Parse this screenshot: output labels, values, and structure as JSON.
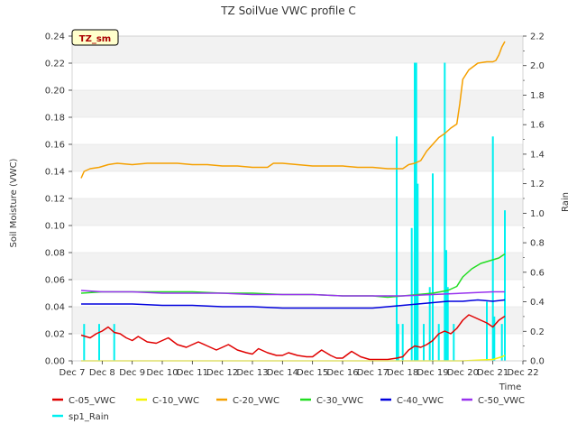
{
  "chart_data": {
    "type": "line",
    "title": "TZ SoilVue VWC profile C",
    "xlabel": "Time",
    "ylabel": "Soil Moisture (VWC)",
    "y2label": "Rain",
    "badge": "TZ_sm",
    "x_ticks": [
      "Dec 7",
      "Dec 8",
      "Dec 9",
      "Dec 10",
      "Dec 11",
      "Dec 12",
      "Dec 13",
      "Dec 14",
      "Dec 15",
      "Dec 16",
      "Dec 17",
      "Dec 18",
      "Dec 19",
      "Dec 20",
      "Dec 21",
      "Dec 22"
    ],
    "xlim": [
      7,
      22
    ],
    "ylim": [
      0.0,
      0.24
    ],
    "y_ticks": [
      "0.00",
      "0.02",
      "0.04",
      "0.06",
      "0.08",
      "0.10",
      "0.12",
      "0.14",
      "0.16",
      "0.18",
      "0.20",
      "0.22",
      "0.24"
    ],
    "y2lim": [
      0.0,
      2.2
    ],
    "y2_ticks": [
      "0.0",
      "0.2",
      "0.4",
      "0.6",
      "0.8",
      "1.0",
      "1.2",
      "1.4",
      "1.6",
      "1.8",
      "2.0",
      "2.2"
    ],
    "grid": "horizontal bands",
    "legend_position": "bottom",
    "series": [
      {
        "name": "C-05_VWC",
        "color": "#e00000",
        "axis": "left",
        "x": [
          7.3,
          7.6,
          7.8,
          8.0,
          8.2,
          8.4,
          8.6,
          8.8,
          9.0,
          9.2,
          9.5,
          9.8,
          10.0,
          10.2,
          10.5,
          10.8,
          11.0,
          11.2,
          11.5,
          11.8,
          12.0,
          12.2,
          12.5,
          12.8,
          13.0,
          13.2,
          13.5,
          13.8,
          14.0,
          14.2,
          14.5,
          14.8,
          15.0,
          15.3,
          15.6,
          15.8,
          16.0,
          16.3,
          16.6,
          16.9,
          17.2,
          17.5,
          17.8,
          18.0,
          18.2,
          18.4,
          18.6,
          18.8,
          19.0,
          19.2,
          19.4,
          19.6,
          19.8,
          20.0,
          20.2,
          20.4,
          20.6,
          20.8,
          21.0,
          21.2,
          21.4
        ],
        "values": [
          0.019,
          0.017,
          0.02,
          0.022,
          0.025,
          0.021,
          0.02,
          0.017,
          0.015,
          0.018,
          0.014,
          0.013,
          0.015,
          0.017,
          0.012,
          0.01,
          0.012,
          0.014,
          0.011,
          0.008,
          0.01,
          0.012,
          0.008,
          0.006,
          0.005,
          0.009,
          0.006,
          0.004,
          0.004,
          0.006,
          0.004,
          0.003,
          0.003,
          0.008,
          0.004,
          0.002,
          0.002,
          0.007,
          0.003,
          0.001,
          0.001,
          0.001,
          0.002,
          0.003,
          0.008,
          0.011,
          0.01,
          0.012,
          0.015,
          0.02,
          0.022,
          0.02,
          0.024,
          0.03,
          0.034,
          0.032,
          0.03,
          0.028,
          0.025,
          0.03,
          0.033
        ]
      },
      {
        "name": "C-10_VWC",
        "color": "#f5f500",
        "axis": "left",
        "x": [
          7.3,
          9.0,
          11.0,
          13.0,
          15.0,
          17.0,
          18.5,
          20.0,
          21.0,
          21.3,
          21.4
        ],
        "values": [
          0.0,
          0.0,
          0.0,
          0.0,
          0.0,
          0.0,
          0.0,
          0.0,
          0.001,
          0.003,
          0.004
        ]
      },
      {
        "name": "C-20_VWC",
        "color": "#f5a000",
        "axis": "left",
        "x": [
          7.3,
          7.4,
          7.6,
          7.9,
          8.2,
          8.5,
          9.0,
          9.5,
          10.0,
          10.5,
          11.0,
          11.5,
          12.0,
          12.5,
          13.0,
          13.5,
          13.7,
          14.0,
          14.5,
          15.0,
          15.5,
          16.0,
          16.5,
          17.0,
          17.5,
          18.0,
          18.2,
          18.4,
          18.6,
          18.8,
          19.0,
          19.2,
          19.4,
          19.6,
          19.8,
          19.9,
          20.0,
          20.2,
          20.5,
          20.8,
          21.0,
          21.1,
          21.2,
          21.3,
          21.4
        ],
        "values": [
          0.135,
          0.14,
          0.142,
          0.143,
          0.145,
          0.146,
          0.145,
          0.146,
          0.146,
          0.146,
          0.145,
          0.145,
          0.144,
          0.144,
          0.143,
          0.143,
          0.146,
          0.146,
          0.145,
          0.144,
          0.144,
          0.144,
          0.143,
          0.143,
          0.142,
          0.142,
          0.145,
          0.146,
          0.148,
          0.155,
          0.16,
          0.165,
          0.168,
          0.172,
          0.175,
          0.19,
          0.208,
          0.215,
          0.22,
          0.221,
          0.221,
          0.222,
          0.226,
          0.232,
          0.236
        ]
      },
      {
        "name": "C-30_VWC",
        "color": "#22dd22",
        "axis": "left",
        "x": [
          7.3,
          8.0,
          9.0,
          10.0,
          11.0,
          12.0,
          13.0,
          14.0,
          15.0,
          16.0,
          17.0,
          17.5,
          18.0,
          18.5,
          19.0,
          19.5,
          19.8,
          20.0,
          20.3,
          20.6,
          20.9,
          21.2,
          21.4
        ],
        "values": [
          0.05,
          0.051,
          0.051,
          0.051,
          0.051,
          0.05,
          0.05,
          0.049,
          0.049,
          0.048,
          0.048,
          0.047,
          0.048,
          0.049,
          0.05,
          0.052,
          0.055,
          0.062,
          0.068,
          0.072,
          0.074,
          0.076,
          0.079
        ]
      },
      {
        "name": "C-40_VWC",
        "color": "#0000dd",
        "axis": "left",
        "x": [
          7.3,
          8.0,
          9.0,
          10.0,
          11.0,
          12.0,
          13.0,
          14.0,
          15.0,
          16.0,
          17.0,
          17.5,
          18.0,
          18.5,
          19.0,
          19.5,
          20.0,
          20.5,
          21.0,
          21.4
        ],
        "values": [
          0.042,
          0.042,
          0.042,
          0.041,
          0.041,
          0.04,
          0.04,
          0.039,
          0.039,
          0.039,
          0.039,
          0.04,
          0.041,
          0.042,
          0.043,
          0.044,
          0.044,
          0.045,
          0.044,
          0.045
        ]
      },
      {
        "name": "C-50_VWC",
        "color": "#9933ee",
        "axis": "left",
        "x": [
          7.3,
          8.0,
          9.0,
          10.0,
          11.0,
          12.0,
          13.0,
          14.0,
          15.0,
          16.0,
          17.0,
          18.0,
          19.0,
          20.0,
          21.0,
          21.4
        ],
        "values": [
          0.052,
          0.051,
          0.051,
          0.05,
          0.05,
          0.05,
          0.049,
          0.049,
          0.049,
          0.048,
          0.048,
          0.048,
          0.049,
          0.05,
          0.051,
          0.051
        ]
      },
      {
        "name": "sp1_Rain",
        "color": "#00f0f0",
        "axis": "right",
        "x": [
          7.4,
          7.9,
          8.4,
          17.8,
          17.85,
          18.0,
          18.3,
          18.4,
          18.45,
          18.5,
          18.7,
          18.9,
          19.0,
          19.2,
          19.4,
          19.45,
          19.5,
          19.7,
          20.8,
          21.0,
          21.05,
          21.3,
          21.4
        ],
        "values": [
          0.25,
          0.25,
          0.25,
          1.52,
          0.25,
          0.25,
          0.9,
          2.02,
          2.02,
          1.2,
          0.25,
          0.5,
          1.27,
          0.25,
          2.02,
          0.75,
          0.5,
          0.25,
          0.4,
          1.52,
          0.3,
          0.25,
          1.02
        ]
      }
    ]
  }
}
